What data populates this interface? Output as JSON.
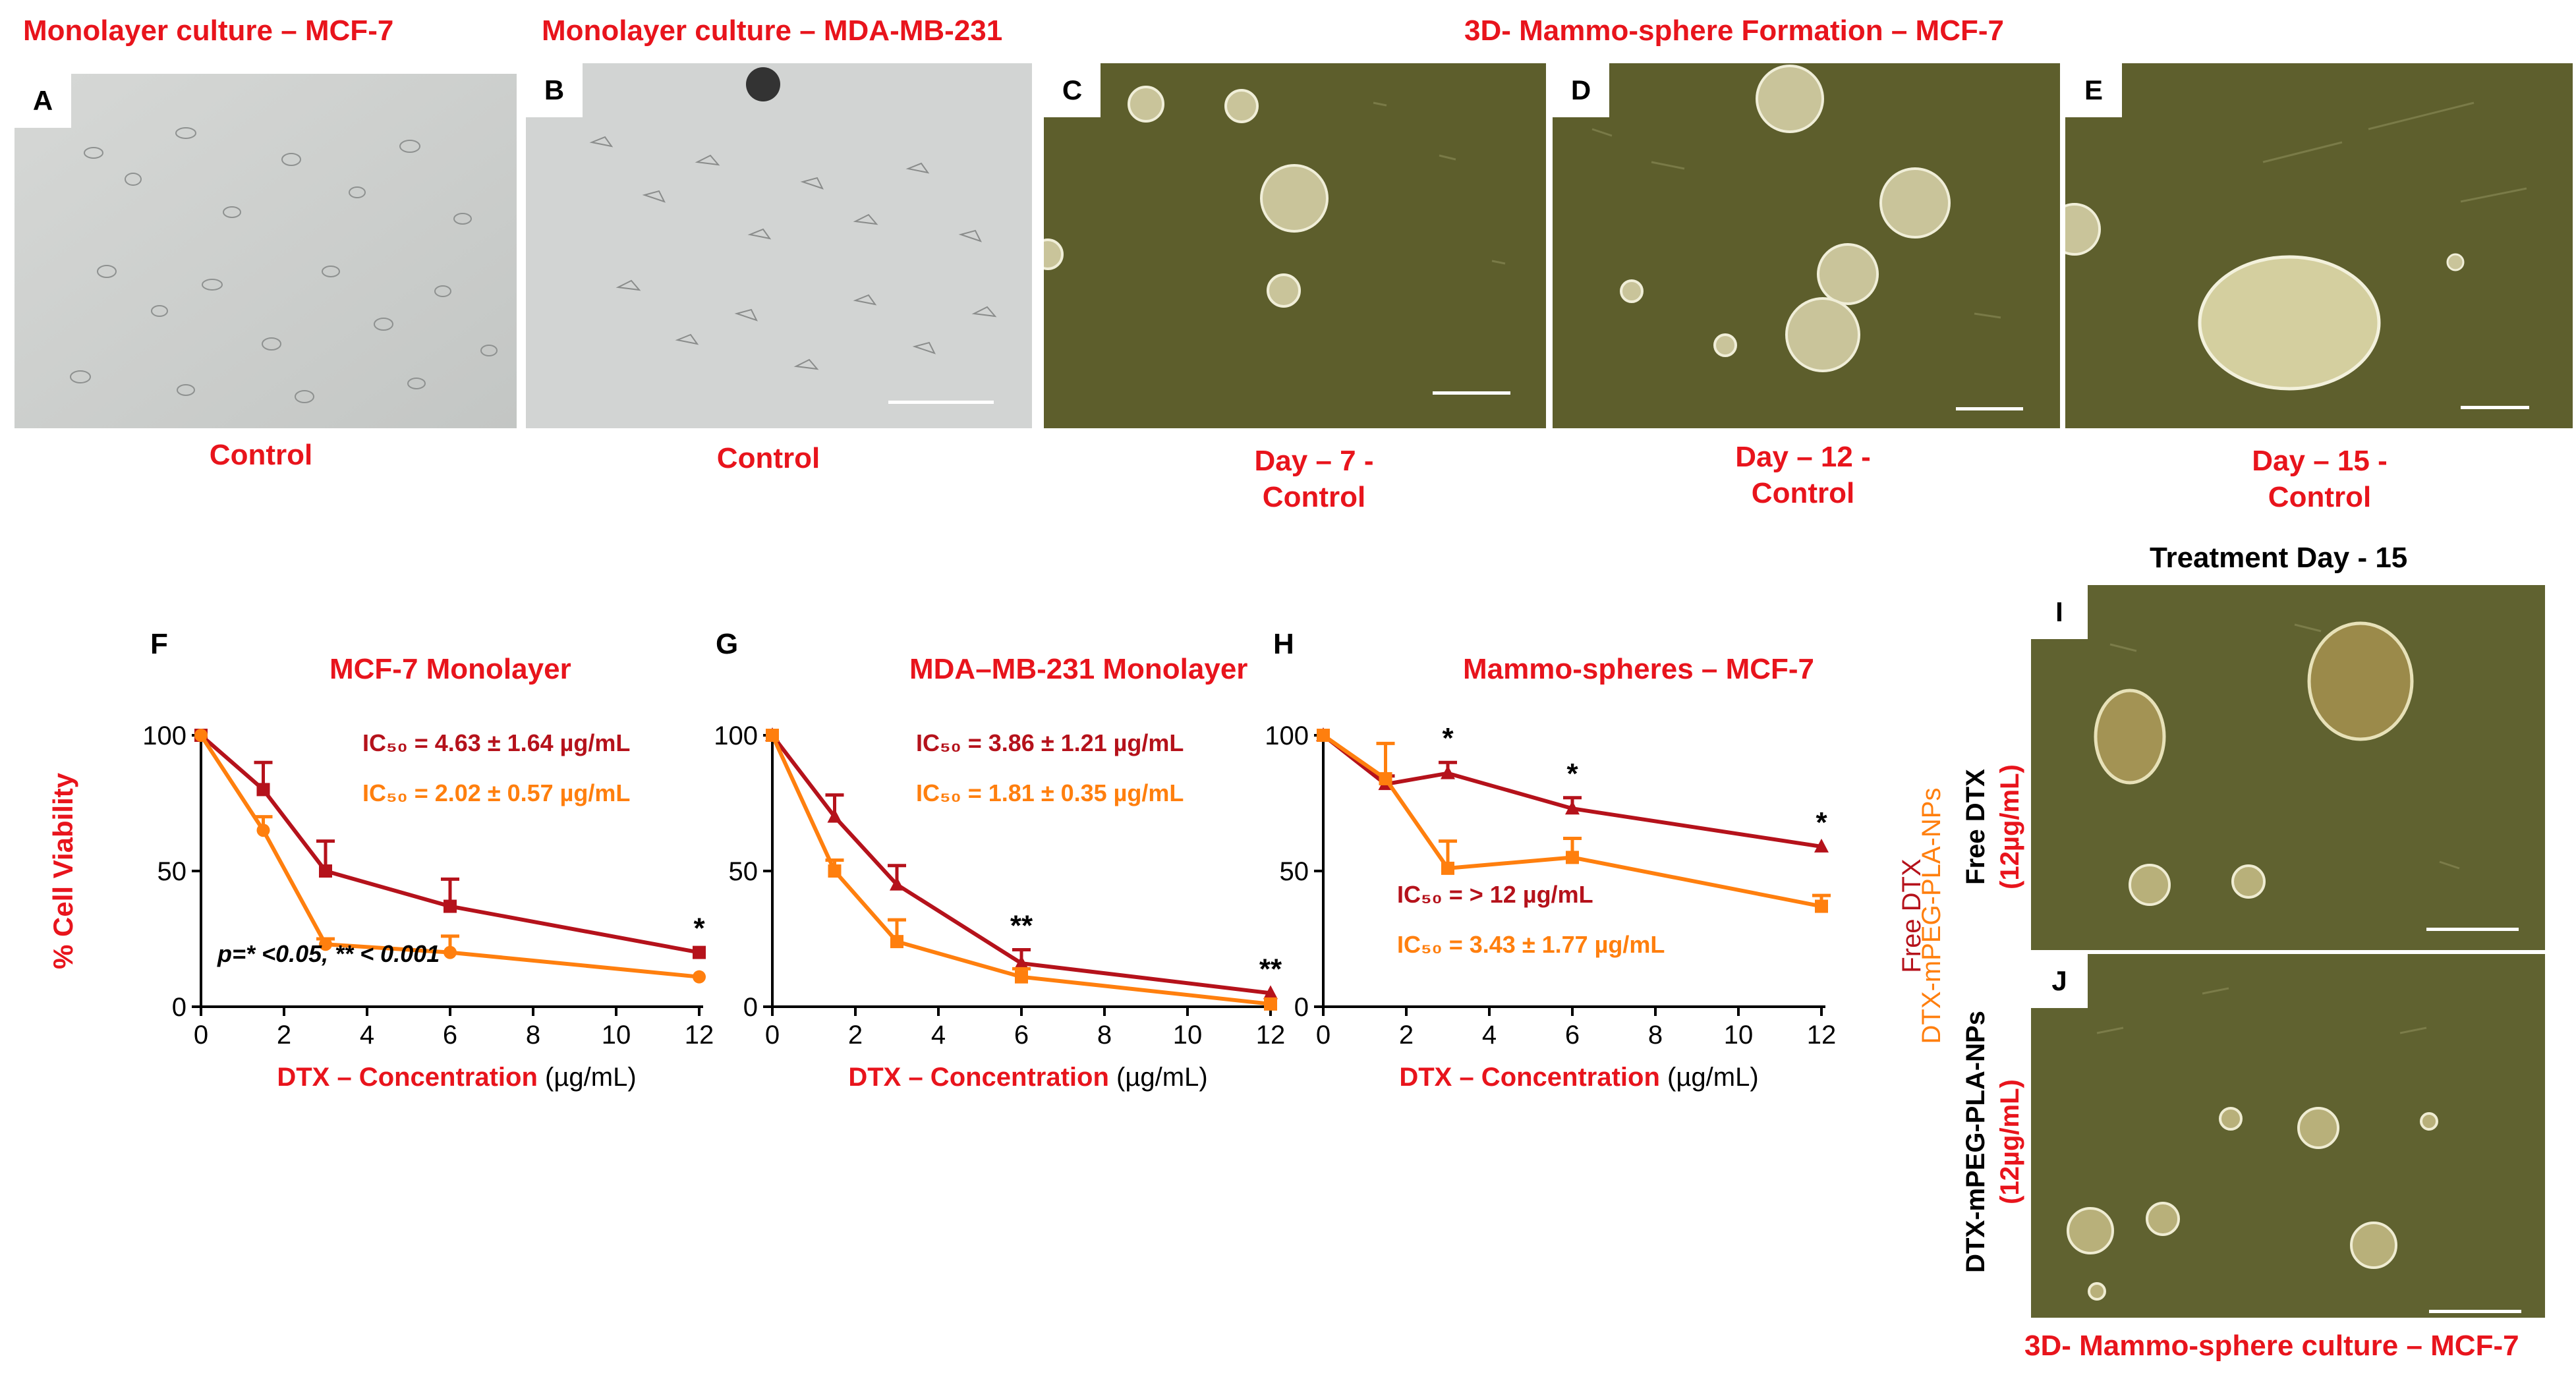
{
  "titles": {
    "a": "Monolayer culture – MCF-7",
    "b": "Monolayer culture – MDA-MB-231",
    "ce": "3D- Mammo-sphere Formation – MCF-7",
    "treatment": "Treatment Day - 15",
    "bottom": "3D- Mammo-sphere culture – MCF-7"
  },
  "panel_letters": [
    "A",
    "B",
    "C",
    "D",
    "E",
    "F",
    "G",
    "H",
    "I",
    "J"
  ],
  "captions": {
    "a": "Control",
    "b": "Control",
    "c": [
      "Day – 7 -",
      "Control"
    ],
    "d": [
      "Day – 12 -",
      "Control"
    ],
    "e": [
      "Day – 15 -",
      "Control"
    ]
  },
  "side_labels": {
    "i_drug": "Free DTX",
    "i_conc": "(12µg/mL)",
    "j_drug": "DTX-mPEG-PLA-NPs",
    "j_conc": "(12µg/mL)"
  },
  "legend": {
    "free": "Free DTX",
    "np": "DTX-mPEG-PLA-NPs"
  },
  "colors": {
    "free": "#b5121b",
    "np": "#ff7f0e",
    "red_text": "#e8141c",
    "mono_bg": "#cdd0cf",
    "sphere_bg": "#5d5e2c"
  },
  "chart_data": [
    {
      "type": "line",
      "panel": "F",
      "title": "MCF-7 Monolayer",
      "xlabel": "DTX – Concentration",
      "xunit": "(µg/mL)",
      "ylabel": "% Cell Viability",
      "xlim": [
        0,
        12
      ],
      "ylim": [
        0,
        100
      ],
      "xticks": [
        0,
        2,
        4,
        6,
        8,
        10,
        12
      ],
      "yticks": [
        0,
        50,
        100
      ],
      "x": [
        0,
        1.5,
        3,
        6,
        12
      ],
      "series": [
        {
          "name": "Free DTX",
          "values": [
            100,
            80,
            50,
            37,
            20
          ],
          "errors": [
            0,
            10,
            11,
            10,
            0
          ],
          "marker": "square"
        },
        {
          "name": "DTX-mPEG-PLA-NPs",
          "values": [
            100,
            65,
            23,
            20,
            11
          ],
          "errors": [
            0,
            5,
            2,
            6,
            0
          ],
          "marker": "circle"
        }
      ],
      "ic50": [
        "IC₅₀ = 4.63 ± 1.64 µg/mL",
        "IC₅₀ = 2.02 ± 0.57 µg/mL"
      ],
      "significance": [
        {
          "x": 12,
          "label": "*"
        }
      ],
      "note": "p=* <0.05, ** < 0.001"
    },
    {
      "type": "line",
      "panel": "G",
      "title": "MDA–MB-231 Monolayer",
      "xlabel": "DTX – Concentration",
      "xunit": "(µg/mL)",
      "xlim": [
        0,
        12
      ],
      "ylim": [
        0,
        100
      ],
      "xticks": [
        0,
        2,
        4,
        6,
        8,
        10,
        12
      ],
      "yticks": [
        0,
        50,
        100
      ],
      "x": [
        0,
        1.5,
        3,
        6,
        12
      ],
      "series": [
        {
          "name": "Free DTX",
          "values": [
            100,
            70,
            45,
            16,
            5
          ],
          "errors": [
            0,
            8,
            7,
            5,
            0
          ],
          "marker": "triangle"
        },
        {
          "name": "DTX-mPEG-PLA-NPs",
          "values": [
            100,
            50,
            24,
            11,
            1
          ],
          "errors": [
            0,
            4,
            8,
            3,
            0
          ],
          "marker": "square"
        }
      ],
      "ic50": [
        "IC₅₀ = 3.86 ± 1.21 µg/mL",
        "IC₅₀ = 1.81 ± 0.35 µg/mL"
      ],
      "significance": [
        {
          "x": 6,
          "label": "**"
        },
        {
          "x": 12,
          "label": "**"
        }
      ]
    },
    {
      "type": "line",
      "panel": "H",
      "title": "Mammo-spheres – MCF-7",
      "xlabel": "DTX – Concentration",
      "xunit": "(µg/mL)",
      "xlim": [
        0,
        12
      ],
      "ylim": [
        0,
        100
      ],
      "xticks": [
        0,
        2,
        4,
        6,
        8,
        10,
        12
      ],
      "yticks": [
        0,
        50,
        100
      ],
      "x": [
        0,
        1.5,
        3,
        6,
        12
      ],
      "series": [
        {
          "name": "Free DTX",
          "values": [
            100,
            82,
            86,
            73,
            59
          ],
          "errors": [
            0,
            3,
            4,
            4,
            0
          ],
          "marker": "triangle"
        },
        {
          "name": "DTX-mPEG-PLA-NPs",
          "values": [
            100,
            84,
            51,
            55,
            37
          ],
          "errors": [
            0,
            13,
            10,
            7,
            4
          ],
          "marker": "square"
        }
      ],
      "ic50": [
        "IC₅₀ = > 12 µg/mL",
        "IC₅₀ = 3.43 ± 1.77 µg/mL"
      ],
      "significance": [
        {
          "x": 3,
          "label": "*"
        },
        {
          "x": 6,
          "label": "*"
        },
        {
          "x": 12,
          "label": "*"
        }
      ]
    }
  ]
}
